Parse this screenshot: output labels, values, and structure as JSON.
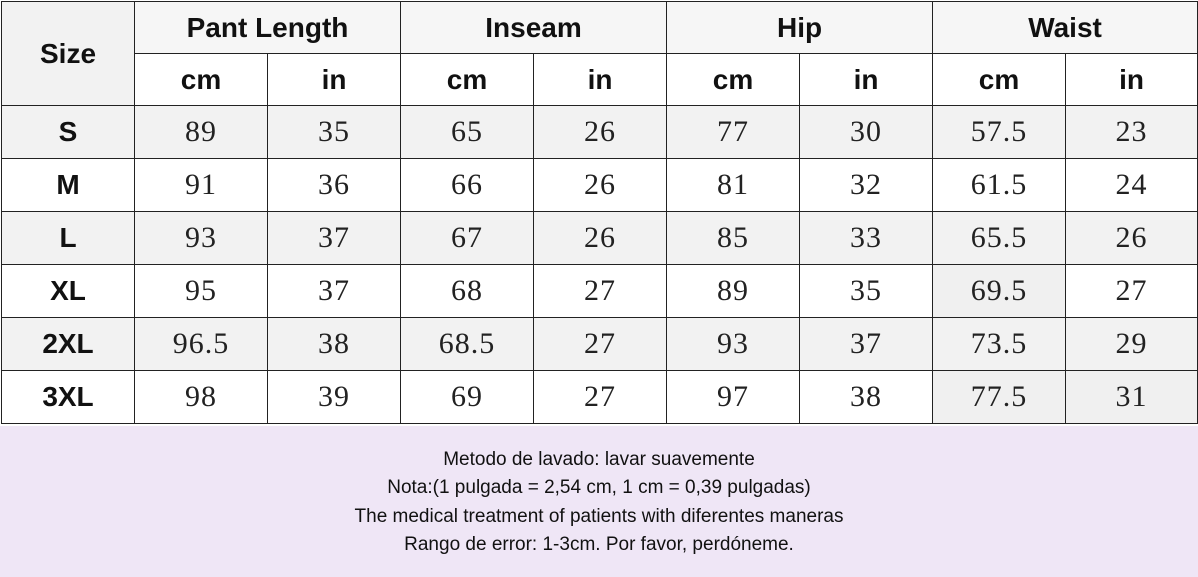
{
  "table": {
    "size_header": "Size",
    "groups": [
      "Pant Length",
      "Inseam",
      "Hip",
      "Waist"
    ],
    "units": [
      "cm",
      "in",
      "cm",
      "in",
      "cm",
      "in",
      "cm",
      "in"
    ],
    "rows": [
      {
        "size": "S",
        "values": [
          "89",
          "35",
          "65",
          "26",
          "77",
          "30",
          "57.5",
          "23"
        ]
      },
      {
        "size": "M",
        "values": [
          "91",
          "36",
          "66",
          "26",
          "81",
          "32",
          "61.5",
          "24"
        ]
      },
      {
        "size": "L",
        "values": [
          "93",
          "37",
          "67",
          "26",
          "85",
          "33",
          "65.5",
          "26"
        ]
      },
      {
        "size": "XL",
        "values": [
          "95",
          "37",
          "68",
          "27",
          "89",
          "35",
          "69.5",
          "27"
        ]
      },
      {
        "size": "2XL",
        "values": [
          "96.5",
          "38",
          "68.5",
          "27",
          "93",
          "37",
          "73.5",
          "29"
        ]
      },
      {
        "size": "3XL",
        "values": [
          "98",
          "39",
          "69",
          "27",
          "97",
          "38",
          "77.5",
          "31"
        ]
      }
    ]
  },
  "notes": [
    "Metodo de lavado: lavar suavemente",
    "Nota:(1 pulgada = 2,54 cm, 1 cm = 0,39 pulgadas)",
    "The medical treatment of patients with diferentes maneras",
    "Rango de error: 1-3cm. Por favor, perdóneme."
  ]
}
